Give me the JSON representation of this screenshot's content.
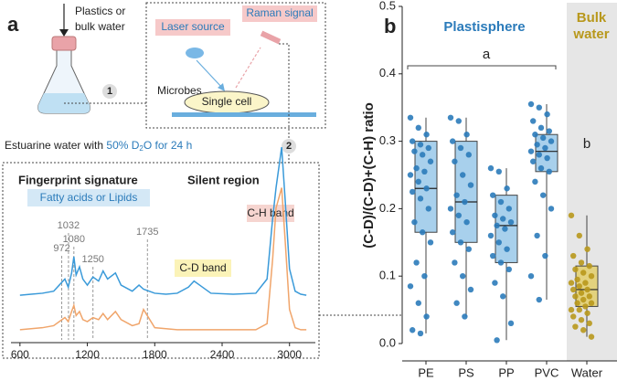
{
  "panel_a": {
    "label": "a",
    "source_line1": "Plastics or",
    "source_line2": "bulk water",
    "laser": "Laser source",
    "raman": "Raman signal",
    "microbes": "Microbes",
    "cell": "Single cell",
    "step1": "1",
    "step2": "2",
    "incubation": [
      "Estuarine water with ",
      "50% D",
      "2",
      "O for 24 h"
    ]
  },
  "chart_data": [
    {
      "type": "line",
      "annotations": {
        "fingerprint": "Fingerprint signature",
        "lipids": "Fatty acids or Lipids",
        "silent": "Silent region",
        "ch": "C-H band",
        "cd": "C-D band"
      },
      "peak_labels": [
        972,
        1032,
        1080,
        1250,
        1735
      ],
      "x": [
        600,
        700,
        800,
        900,
        950,
        1000,
        1030,
        1060,
        1080,
        1100,
        1130,
        1160,
        1200,
        1250,
        1300,
        1340,
        1380,
        1450,
        1500,
        1600,
        1660,
        1700,
        1800,
        1900,
        2000,
        2100,
        2150,
        2200,
        2300,
        2500,
        2700,
        2800,
        2850,
        2880,
        2930,
        2960,
        3000,
        3050,
        3100,
        3150
      ],
      "xlim": [
        520,
        3230
      ],
      "xticks": [
        600,
        1200,
        1800,
        2400,
        3000
      ],
      "ylim": [
        0,
        1
      ],
      "series": [
        {
          "color": "#3a9ad9",
          "values": [
            0.22,
            0.225,
            0.23,
            0.24,
            0.27,
            0.3,
            0.26,
            0.33,
            0.41,
            0.32,
            0.36,
            0.3,
            0.27,
            0.31,
            0.29,
            0.34,
            0.3,
            0.33,
            0.27,
            0.24,
            0.27,
            0.25,
            0.23,
            0.225,
            0.23,
            0.26,
            0.29,
            0.27,
            0.23,
            0.225,
            0.23,
            0.3,
            0.6,
            0.75,
            0.95,
            0.7,
            0.35,
            0.24,
            0.225,
            0.22
          ]
        },
        {
          "color": "#f0a56b",
          "values": [
            0.05,
            0.055,
            0.06,
            0.07,
            0.09,
            0.11,
            0.09,
            0.14,
            0.17,
            0.12,
            0.14,
            0.1,
            0.09,
            0.11,
            0.1,
            0.13,
            0.1,
            0.14,
            0.1,
            0.07,
            0.08,
            0.15,
            0.06,
            0.055,
            0.05,
            0.05,
            0.05,
            0.05,
            0.05,
            0.05,
            0.05,
            0.08,
            0.4,
            0.65,
            0.75,
            0.5,
            0.15,
            0.06,
            0.05,
            0.05
          ]
        }
      ]
    },
    {
      "type": "box",
      "label": "b",
      "ylabel": "(C-D)/(C-D)+(C-H) ratio",
      "group_titles": [
        "Plastisphere",
        "Bulk",
        "water"
      ],
      "group_letters": [
        "a",
        "b"
      ],
      "categories": [
        "PE",
        "PS",
        "PP",
        "PVC",
        "Water"
      ],
      "colors": [
        "#2b7bba",
        "#2b7bba",
        "#2b7bba",
        "#2b7bba",
        "#b8981c"
      ],
      "box_fills": [
        "#a8d0ec",
        "#a8d0ec",
        "#a8d0ec",
        "#a8d0ec",
        "#e3d27e"
      ],
      "ylim": [
        0,
        0.5
      ],
      "yticks": [
        {
          "value": 0,
          "label": "0.0"
        },
        0.1,
        0.2,
        0.3,
        0.4,
        0.5
      ],
      "boxes": [
        {
          "min": 0.015,
          "q1": 0.165,
          "median": 0.23,
          "q3": 0.3,
          "max": 0.335
        },
        {
          "min": 0.04,
          "q1": 0.15,
          "median": 0.21,
          "q3": 0.3,
          "max": 0.335
        },
        {
          "min": 0.005,
          "q1": 0.12,
          "median": 0.175,
          "q3": 0.22,
          "max": 0.26
        },
        {
          "min": 0.065,
          "q1": 0.255,
          "median": 0.285,
          "q3": 0.31,
          "max": 0.355
        },
        {
          "min": 0.01,
          "q1": 0.055,
          "median": 0.08,
          "q3": 0.115,
          "max": 0.19
        }
      ],
      "points": [
        [
          0.335,
          0.32,
          0.31,
          0.3,
          0.295,
          0.29,
          0.285,
          0.28,
          0.27,
          0.26,
          0.255,
          0.25,
          0.24,
          0.23,
          0.225,
          0.215,
          0.2,
          0.18,
          0.165,
          0.15,
          0.12,
          0.1,
          0.085,
          0.06,
          0.04,
          0.02,
          0.015
        ],
        [
          0.335,
          0.33,
          0.31,
          0.3,
          0.29,
          0.28,
          0.27,
          0.25,
          0.235,
          0.22,
          0.21,
          0.2,
          0.19,
          0.18,
          0.165,
          0.15,
          0.14,
          0.12,
          0.1,
          0.08,
          0.06,
          0.04
        ],
        [
          0.26,
          0.255,
          0.23,
          0.22,
          0.21,
          0.2,
          0.19,
          0.185,
          0.18,
          0.175,
          0.17,
          0.16,
          0.15,
          0.14,
          0.13,
          0.12,
          0.11,
          0.09,
          0.07,
          0.03,
          0.005
        ],
        [
          0.355,
          0.35,
          0.34,
          0.33,
          0.32,
          0.315,
          0.31,
          0.305,
          0.3,
          0.295,
          0.29,
          0.285,
          0.28,
          0.275,
          0.27,
          0.26,
          0.255,
          0.24,
          0.22,
          0.2,
          0.16,
          0.13,
          0.1,
          0.065
        ],
        [
          0.19,
          0.16,
          0.14,
          0.13,
          0.12,
          0.115,
          0.11,
          0.105,
          0.1,
          0.095,
          0.09,
          0.09,
          0.085,
          0.08,
          0.08,
          0.075,
          0.07,
          0.07,
          0.065,
          0.06,
          0.06,
          0.055,
          0.05,
          0.05,
          0.045,
          0.04,
          0.035,
          0.03,
          0.025,
          0.02,
          0.01
        ]
      ]
    }
  ]
}
